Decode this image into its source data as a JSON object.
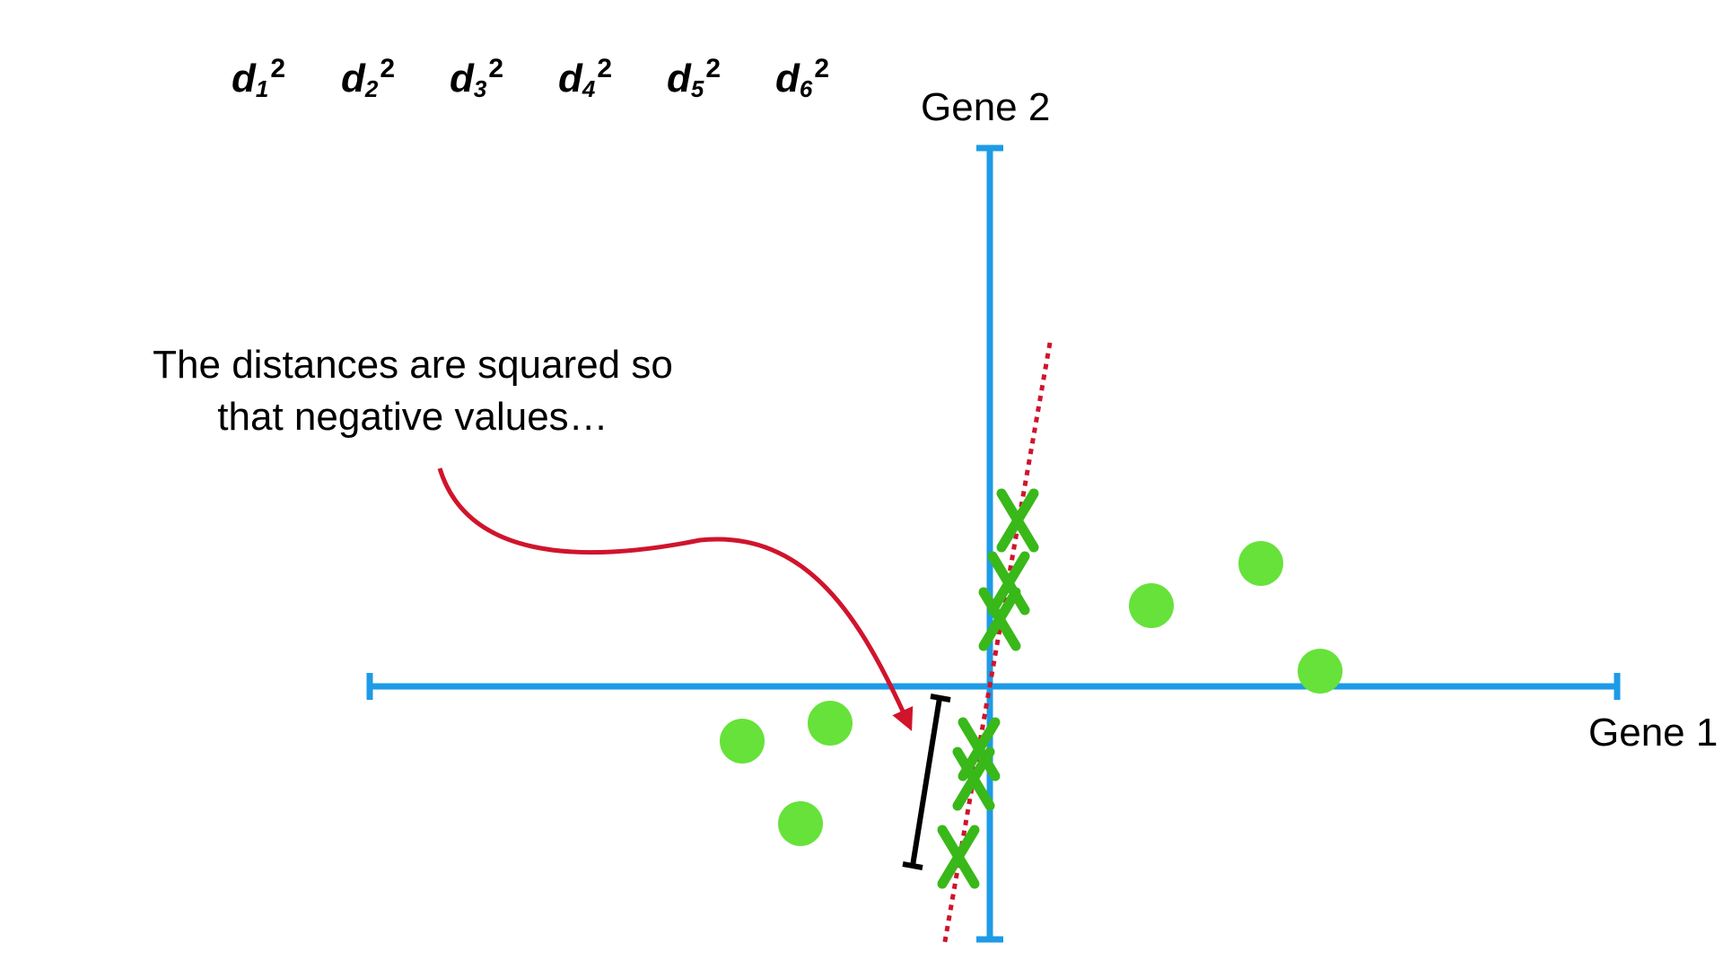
{
  "distances": [
    {
      "base": "d",
      "sub": "1",
      "sup": "2"
    },
    {
      "base": "d",
      "sub": "2",
      "sup": "2"
    },
    {
      "base": "d",
      "sub": "3",
      "sup": "2"
    },
    {
      "base": "d",
      "sub": "4",
      "sup": "2"
    },
    {
      "base": "d",
      "sub": "5",
      "sup": "2"
    },
    {
      "base": "d",
      "sub": "6",
      "sup": "2"
    }
  ],
  "axes": {
    "x_label": "Gene 1",
    "y_label": "Gene 2"
  },
  "annotation": {
    "line1": "The distances are squared so",
    "line2": "that negative values…"
  },
  "colors": {
    "axis": "#1e9be6",
    "point": "#66e23a",
    "projection": "#39b81a",
    "fit_line": "#d0142c",
    "arrow": "#d0142c",
    "bracket": "#000000"
  }
}
